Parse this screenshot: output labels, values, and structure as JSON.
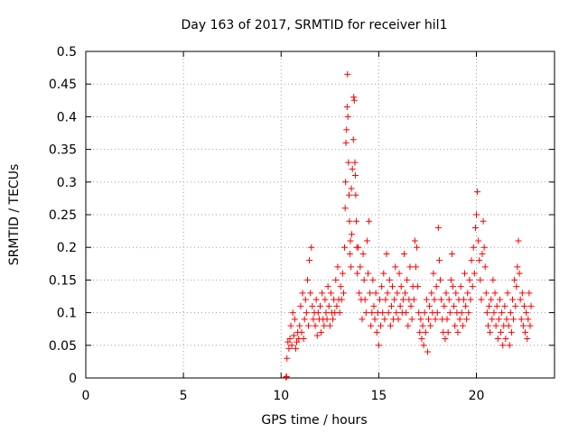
{
  "chart_data": {
    "type": "scatter",
    "title": "Day 163 of 2017, SRMTID for receiver hil1",
    "xlabel": "GPS time / hours",
    "ylabel": "SRMTID / TECUs",
    "xlim": [
      0,
      24
    ],
    "ylim": [
      0,
      0.5
    ],
    "x_ticks": [
      {
        "value": 0,
        "label": "0"
      },
      {
        "value": 5,
        "label": "5"
      },
      {
        "value": 10,
        "label": "10"
      },
      {
        "value": 15,
        "label": "15"
      },
      {
        "value": 20,
        "label": "20"
      }
    ],
    "y_ticks": [
      {
        "value": 0,
        "label": "0"
      },
      {
        "value": 0.05,
        "label": "0.05"
      },
      {
        "value": 0.1,
        "label": "0.1"
      },
      {
        "value": 0.15,
        "label": "0.15"
      },
      {
        "value": 0.2,
        "label": "0.2"
      },
      {
        "value": 0.25,
        "label": "0.25"
      },
      {
        "value": 0.3,
        "label": "0.3"
      },
      {
        "value": 0.35,
        "label": "0.35"
      },
      {
        "value": 0.4,
        "label": "0.4"
      },
      {
        "value": 0.45,
        "label": "0.45"
      },
      {
        "value": 0.5,
        "label": "0.5"
      }
    ],
    "grid": true,
    "legend": "none",
    "marker": "plus",
    "color": "#ff0000",
    "series": [
      {
        "name": "SRMTID",
        "points": [
          [
            10.25,
            0.001
          ],
          [
            10.28,
            0.002
          ],
          [
            10.3,
            0.03
          ],
          [
            10.35,
            0.055
          ],
          [
            10.4,
            0.045
          ],
          [
            10.45,
            0.06
          ],
          [
            10.5,
            0.08
          ],
          [
            10.55,
            0.05
          ],
          [
            10.6,
            0.1
          ],
          [
            10.65,
            0.065
          ],
          [
            10.7,
            0.09
          ],
          [
            10.75,
            0.045
          ],
          [
            10.8,
            0.055
          ],
          [
            10.85,
            0.07
          ],
          [
            10.9,
            0.06
          ],
          [
            10.95,
            0.08
          ],
          [
            11.0,
            0.11
          ],
          [
            11.05,
            0.07
          ],
          [
            11.1,
            0.13
          ],
          [
            11.15,
            0.06
          ],
          [
            11.2,
            0.09
          ],
          [
            11.25,
            0.12
          ],
          [
            11.3,
            0.1
          ],
          [
            11.35,
            0.15
          ],
          [
            11.4,
            0.08
          ],
          [
            11.45,
            0.18
          ],
          [
            11.5,
            0.13
          ],
          [
            11.55,
            0.2
          ],
          [
            11.6,
            0.11
          ],
          [
            11.65,
            0.09
          ],
          [
            11.7,
            0.1
          ],
          [
            11.75,
            0.08
          ],
          [
            11.8,
            0.12
          ],
          [
            11.85,
            0.065
          ],
          [
            11.9,
            0.1
          ],
          [
            11.95,
            0.09
          ],
          [
            12.0,
            0.11
          ],
          [
            12.05,
            0.07
          ],
          [
            12.1,
            0.13
          ],
          [
            12.15,
            0.09
          ],
          [
            12.2,
            0.08
          ],
          [
            12.25,
            0.12
          ],
          [
            12.3,
            0.1
          ],
          [
            12.35,
            0.09
          ],
          [
            12.4,
            0.14
          ],
          [
            12.45,
            0.11
          ],
          [
            12.5,
            0.08
          ],
          [
            12.55,
            0.13
          ],
          [
            12.6,
            0.1
          ],
          [
            12.65,
            0.09
          ],
          [
            12.7,
            0.12
          ],
          [
            12.75,
            0.1
          ],
          [
            12.8,
            0.15
          ],
          [
            12.85,
            0.11
          ],
          [
            12.9,
            0.17
          ],
          [
            12.95,
            0.12
          ],
          [
            13.0,
            0.1
          ],
          [
            13.05,
            0.14
          ],
          [
            13.1,
            0.12
          ],
          [
            13.15,
            0.16
          ],
          [
            13.2,
            0.13
          ],
          [
            13.25,
            0.2
          ],
          [
            13.28,
            0.26
          ],
          [
            13.3,
            0.3
          ],
          [
            13.32,
            0.36
          ],
          [
            13.35,
            0.38
          ],
          [
            13.38,
            0.415
          ],
          [
            13.4,
            0.465
          ],
          [
            13.42,
            0.4
          ],
          [
            13.45,
            0.33
          ],
          [
            13.48,
            0.28
          ],
          [
            13.5,
            0.24
          ],
          [
            13.52,
            0.19
          ],
          [
            13.55,
            0.21
          ],
          [
            13.58,
            0.17
          ],
          [
            13.6,
            0.29
          ],
          [
            13.62,
            0.22
          ],
          [
            13.65,
            0.32
          ],
          [
            13.7,
            0.365
          ],
          [
            13.72,
            0.43
          ],
          [
            13.75,
            0.425
          ],
          [
            13.78,
            0.33
          ],
          [
            13.8,
            0.31
          ],
          [
            13.82,
            0.28
          ],
          [
            13.85,
            0.24
          ],
          [
            13.88,
            0.2
          ],
          [
            13.9,
            0.16
          ],
          [
            13.95,
            0.2
          ],
          [
            14.0,
            0.13
          ],
          [
            14.05,
            0.17
          ],
          [
            14.1,
            0.12
          ],
          [
            14.15,
            0.09
          ],
          [
            14.2,
            0.19
          ],
          [
            14.25,
            0.15
          ],
          [
            14.3,
            0.12
          ],
          [
            14.35,
            0.1
          ],
          [
            14.4,
            0.21
          ],
          [
            14.45,
            0.16
          ],
          [
            14.5,
            0.24
          ],
          [
            14.55,
            0.13
          ],
          [
            14.6,
            0.08
          ],
          [
            14.65,
            0.1
          ],
          [
            14.7,
            0.15
          ],
          [
            14.75,
            0.11
          ],
          [
            14.8,
            0.09
          ],
          [
            14.85,
            0.13
          ],
          [
            14.9,
            0.07
          ],
          [
            14.95,
            0.1
          ],
          [
            15.0,
            0.05
          ],
          [
            15.05,
            0.12
          ],
          [
            15.1,
            0.08
          ],
          [
            15.15,
            0.14
          ],
          [
            15.2,
            0.1
          ],
          [
            15.25,
            0.16
          ],
          [
            15.3,
            0.09
          ],
          [
            15.35,
            0.12
          ],
          [
            15.4,
            0.19
          ],
          [
            15.45,
            0.13
          ],
          [
            15.5,
            0.1
          ],
          [
            15.55,
            0.15
          ],
          [
            15.6,
            0.08
          ],
          [
            15.65,
            0.11
          ],
          [
            15.7,
            0.14
          ],
          [
            15.75,
            0.09
          ],
          [
            15.8,
            0.12
          ],
          [
            15.85,
            0.17
          ],
          [
            15.9,
            0.1
          ],
          [
            15.95,
            0.13
          ],
          [
            16.0,
            0.09
          ],
          [
            16.05,
            0.16
          ],
          [
            16.1,
            0.11
          ],
          [
            16.15,
            0.14
          ],
          [
            16.2,
            0.1
          ],
          [
            16.25,
            0.12
          ],
          [
            16.3,
            0.19
          ],
          [
            16.35,
            0.13
          ],
          [
            16.4,
            0.1
          ],
          [
            16.45,
            0.15
          ],
          [
            16.5,
            0.08
          ],
          [
            16.55,
            0.12
          ],
          [
            16.6,
            0.17
          ],
          [
            16.65,
            0.11
          ],
          [
            16.7,
            0.09
          ],
          [
            16.75,
            0.14
          ],
          [
            16.8,
            0.12
          ],
          [
            16.85,
            0.21
          ],
          [
            16.9,
            0.17
          ],
          [
            16.95,
            0.2
          ],
          [
            17.0,
            0.14
          ],
          [
            17.05,
            0.1
          ],
          [
            17.1,
            0.07
          ],
          [
            17.15,
            0.09
          ],
          [
            17.2,
            0.06
          ],
          [
            17.25,
            0.08
          ],
          [
            17.3,
            0.05
          ],
          [
            17.35,
            0.1
          ],
          [
            17.4,
            0.07
          ],
          [
            17.45,
            0.12
          ],
          [
            17.5,
            0.04
          ],
          [
            17.55,
            0.09
          ],
          [
            17.6,
            0.11
          ],
          [
            17.65,
            0.08
          ],
          [
            17.7,
            0.13
          ],
          [
            17.75,
            0.1
          ],
          [
            17.8,
            0.16
          ],
          [
            17.85,
            0.12
          ],
          [
            17.9,
            0.09
          ],
          [
            17.95,
            0.14
          ],
          [
            18.0,
            0.1
          ],
          [
            18.05,
            0.23
          ],
          [
            18.1,
            0.18
          ],
          [
            18.15,
            0.15
          ],
          [
            18.2,
            0.12
          ],
          [
            18.25,
            0.09
          ],
          [
            18.3,
            0.07
          ],
          [
            18.35,
            0.11
          ],
          [
            18.4,
            0.06
          ],
          [
            18.45,
            0.13
          ],
          [
            18.5,
            0.09
          ],
          [
            18.55,
            0.07
          ],
          [
            18.6,
            0.12
          ],
          [
            18.65,
            0.1
          ],
          [
            18.7,
            0.15
          ],
          [
            18.75,
            0.19
          ],
          [
            18.8,
            0.14
          ],
          [
            18.85,
            0.11
          ],
          [
            18.9,
            0.08
          ],
          [
            18.95,
            0.13
          ],
          [
            19.0,
            0.1
          ],
          [
            19.05,
            0.07
          ],
          [
            19.1,
            0.12
          ],
          [
            19.15,
            0.09
          ],
          [
            19.2,
            0.14
          ],
          [
            19.25,
            0.1
          ],
          [
            19.3,
            0.08
          ],
          [
            19.35,
            0.12
          ],
          [
            19.4,
            0.16
          ],
          [
            19.45,
            0.11
          ],
          [
            19.5,
            0.09
          ],
          [
            19.55,
            0.13
          ],
          [
            19.6,
            0.1
          ],
          [
            19.65,
            0.15
          ],
          [
            19.7,
            0.12
          ],
          [
            19.75,
            0.18
          ],
          [
            19.8,
            0.14
          ],
          [
            19.85,
            0.2
          ],
          [
            19.9,
            0.16
          ],
          [
            19.95,
            0.23
          ],
          [
            20.0,
            0.25
          ],
          [
            20.05,
            0.285
          ],
          [
            20.1,
            0.21
          ],
          [
            20.15,
            0.18
          ],
          [
            20.2,
            0.15
          ],
          [
            20.25,
            0.12
          ],
          [
            20.3,
            0.19
          ],
          [
            20.35,
            0.24
          ],
          [
            20.4,
            0.2
          ],
          [
            20.45,
            0.17
          ],
          [
            20.5,
            0.13
          ],
          [
            20.55,
            0.1
          ],
          [
            20.6,
            0.08
          ],
          [
            20.65,
            0.11
          ],
          [
            20.7,
            0.07
          ],
          [
            20.75,
            0.12
          ],
          [
            20.8,
            0.09
          ],
          [
            20.85,
            0.15
          ],
          [
            20.9,
            0.1
          ],
          [
            20.95,
            0.13
          ],
          [
            21.0,
            0.08
          ],
          [
            21.05,
            0.11
          ],
          [
            21.1,
            0.06
          ],
          [
            21.15,
            0.09
          ],
          [
            21.2,
            0.12
          ],
          [
            21.25,
            0.07
          ],
          [
            21.3,
            0.1
          ],
          [
            21.35,
            0.05
          ],
          [
            21.4,
            0.08
          ],
          [
            21.45,
            0.11
          ],
          [
            21.5,
            0.06
          ],
          [
            21.55,
            0.09
          ],
          [
            21.6,
            0.13
          ],
          [
            21.65,
            0.08
          ],
          [
            21.7,
            0.05
          ],
          [
            21.75,
            0.1
          ],
          [
            21.8,
            0.07
          ],
          [
            21.85,
            0.12
          ],
          [
            21.9,
            0.09
          ],
          [
            21.95,
            0.15
          ],
          [
            22.0,
            0.11
          ],
          [
            22.05,
            0.14
          ],
          [
            22.1,
            0.17
          ],
          [
            22.15,
            0.21
          ],
          [
            22.2,
            0.16
          ],
          [
            22.25,
            0.12
          ],
          [
            22.3,
            0.09
          ],
          [
            22.35,
            0.13
          ],
          [
            22.4,
            0.08
          ],
          [
            22.45,
            0.11
          ],
          [
            22.5,
            0.07
          ],
          [
            22.55,
            0.1
          ],
          [
            22.6,
            0.06
          ],
          [
            22.65,
            0.09
          ],
          [
            22.7,
            0.13
          ],
          [
            22.75,
            0.08
          ],
          [
            22.8,
            0.11
          ]
        ]
      }
    ]
  }
}
